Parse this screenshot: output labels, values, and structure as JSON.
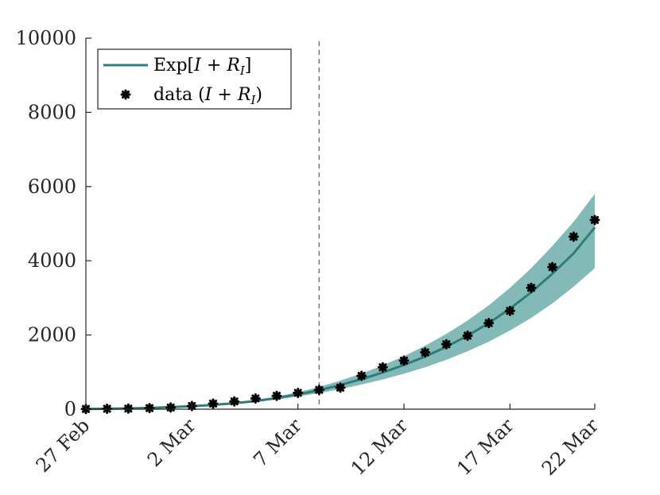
{
  "chart_data": {
    "type": "line",
    "x": [
      0,
      1,
      2,
      3,
      4,
      5,
      6,
      7,
      8,
      9,
      10,
      11,
      12,
      13,
      14,
      15,
      16,
      17,
      18,
      19,
      20,
      21,
      22,
      23,
      24
    ],
    "xtick_positions": [
      0,
      5,
      10,
      15,
      20,
      24
    ],
    "xtick_labels": [
      "27 Feb",
      "2 Mar",
      "7 Mar",
      "12 Mar",
      "17 Mar",
      "22 Mar"
    ],
    "xlim": [
      0,
      24
    ],
    "ylim": [
      0,
      10000
    ],
    "yticks": [
      0,
      2000,
      4000,
      6000,
      8000,
      10000
    ],
    "ytick_labels": [
      "0",
      "2000",
      "4000",
      "6000",
      "8000",
      "10000"
    ],
    "vline_x": 11,
    "series": [
      {
        "name": "Exp[I + R_I]",
        "kind": "line",
        "color": "#2e7d7b",
        "values": [
          5,
          12,
          22,
          35,
          55,
          80,
          115,
          160,
          220,
          300,
          400,
          510,
          650,
          810,
          990,
          1190,
          1420,
          1680,
          1980,
          2320,
          2710,
          3150,
          3650,
          4200,
          4900
        ],
        "band_lower": [
          5,
          11,
          20,
          32,
          50,
          73,
          105,
          145,
          195,
          262,
          345,
          430,
          540,
          665,
          800,
          955,
          1130,
          1330,
          1560,
          1820,
          2120,
          2460,
          2850,
          3300,
          3800
        ],
        "band_upper": [
          5,
          13,
          24,
          38,
          60,
          88,
          125,
          175,
          245,
          340,
          460,
          600,
          770,
          960,
          1180,
          1430,
          1710,
          2030,
          2390,
          2800,
          3270,
          3800,
          4400,
          5050,
          5800
        ],
        "band_color": "#75b3b0"
      },
      {
        "name": "data (I + R_I)",
        "kind": "scatter",
        "marker": "asterisk",
        "color": "#000000",
        "values": [
          5,
          10,
          15,
          30,
          45,
          85,
          150,
          210,
          290,
          360,
          440,
          520,
          580,
          900,
          1130,
          1310,
          1530,
          1750,
          1980,
          2320,
          2650,
          3270,
          3830,
          4650,
          5100
        ]
      }
    ],
    "legend": {
      "placement": "top-left",
      "entries": [
        {
          "main": "Exp[",
          "var1": "I",
          "mid": " + ",
          "var2": "R",
          "sub": "I",
          "close": "]"
        },
        {
          "main": "data (",
          "var1": "I",
          "mid": " + ",
          "var2": "R",
          "sub": "I",
          "close": ")"
        }
      ]
    }
  }
}
